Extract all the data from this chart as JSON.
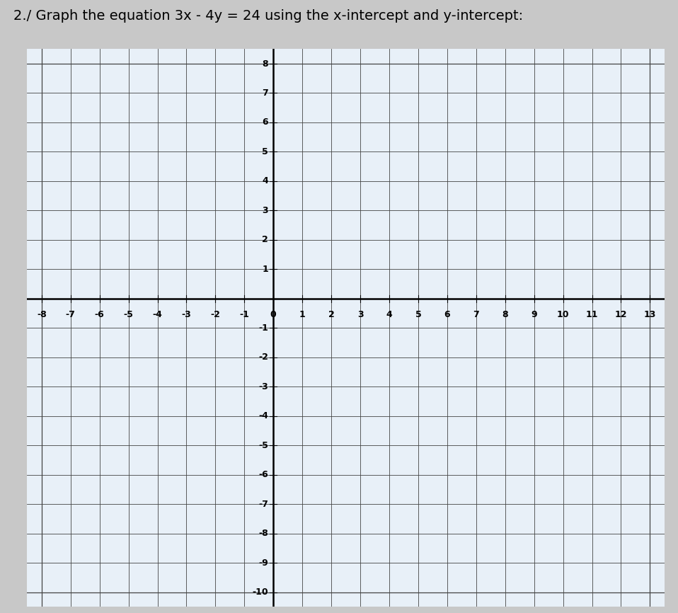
{
  "title": "2./ Graph the equation 3x - 4y = 24 using the x-intercept and y-intercept:",
  "title_fontsize": 14,
  "title_fontweight": "normal",
  "xmin": -8.5,
  "xmax": 13.5,
  "ymin": -10.5,
  "ymax": 8.5,
  "x_int_min": -8,
  "x_int_max": 13,
  "y_int_min": -10,
  "y_int_max": 8,
  "xticks": [
    -8,
    -7,
    -6,
    -5,
    -4,
    -3,
    -2,
    -1,
    0,
    1,
    2,
    3,
    4,
    5,
    6,
    7,
    8,
    9,
    10,
    11,
    12,
    13
  ],
  "yticks": [
    -10,
    -9,
    -8,
    -7,
    -6,
    -5,
    -4,
    -3,
    -2,
    -1,
    1,
    2,
    3,
    4,
    5,
    6,
    7,
    8
  ],
  "grid_color": "#444444",
  "grid_linewidth": 0.6,
  "axis_linewidth": 1.8,
  "background_color": "#e8f0f8",
  "outer_background": "#c8c8c8",
  "label_fontsize": 9
}
